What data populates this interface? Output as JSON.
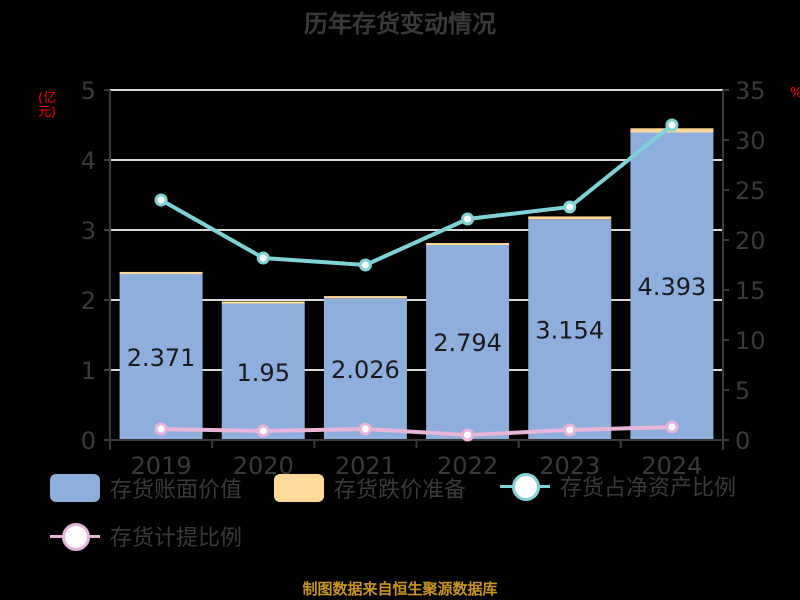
{
  "title": "历年存货变动情况",
  "left_axis_unit": "(亿元)",
  "right_axis_unit": "%",
  "source": "制图数据来自恒生聚源数据库",
  "colors": {
    "background": "#000000",
    "book_value": "#8eaedb",
    "provision": "#ffd99a",
    "ratio_net_assets": "#7fd3d6",
    "provision_ratio": "#e8b4d8",
    "axis_unit": "#ff0000",
    "source": "#c8941c"
  },
  "legend": [
    {
      "label": "存货账面价值",
      "type": "bar",
      "color": "#8eaedb"
    },
    {
      "label": "存货跌价准备",
      "type": "bar",
      "color": "#ffd99a"
    },
    {
      "label": "存货占净资产比例",
      "type": "line",
      "color": "#7fd3d6"
    },
    {
      "label": "存货计提比例",
      "type": "line",
      "color": "#e8b4d8"
    }
  ],
  "chart_data": {
    "type": "bar",
    "title": "历年存货变动情况",
    "categories": [
      "2019",
      "2020",
      "2021",
      "2022",
      "2023",
      "2024"
    ],
    "xlabel": "",
    "ylabel": "(亿元)",
    "ylabel_right": "%",
    "ylim": [
      0,
      5
    ],
    "ylim_right": [
      0,
      35
    ],
    "yticks": [
      0,
      1,
      2,
      3,
      4,
      5
    ],
    "yticks_right": [
      0,
      5,
      10,
      15,
      20,
      25,
      30,
      35
    ],
    "grid": true,
    "legend_position": "bottom",
    "series": [
      {
        "name": "存货账面价值",
        "type": "bar",
        "axis": "left",
        "stack": "total",
        "values": [
          2.371,
          1.95,
          2.026,
          2.794,
          3.154,
          4.393
        ],
        "labels": [
          "2.371",
          "1.95",
          "2.026",
          "2.794",
          "3.154",
          "4.393"
        ]
      },
      {
        "name": "存货跌价准备",
        "type": "bar",
        "axis": "left",
        "stack": "total",
        "values": [
          0.03,
          0.03,
          0.03,
          0.02,
          0.04,
          0.06
        ]
      },
      {
        "name": "存货占净资产比例",
        "type": "line",
        "axis": "right",
        "values": [
          24.0,
          18.2,
          17.5,
          22.1,
          23.3,
          31.5
        ]
      },
      {
        "name": "存货计提比例",
        "type": "line",
        "axis": "right",
        "values": [
          1.1,
          0.9,
          1.1,
          0.5,
          1.0,
          1.3
        ]
      }
    ]
  }
}
